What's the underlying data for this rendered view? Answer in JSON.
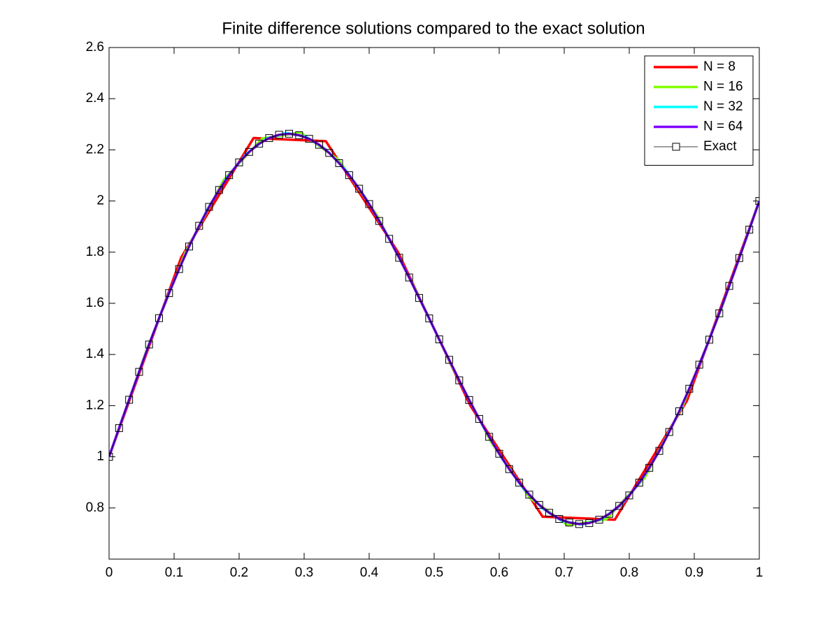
{
  "chart_data": {
    "type": "line",
    "title": "Finite difference solutions compared to the exact solution",
    "xlim": [
      0,
      1
    ],
    "xticks": [
      0,
      0.1,
      0.2,
      0.3,
      0.4,
      0.5,
      0.6,
      0.7,
      0.8,
      0.9,
      1
    ],
    "ylim": [
      0.6,
      2.6
    ],
    "yticks": [
      0.8,
      1,
      1.2,
      1.4,
      1.6,
      1.8,
      2,
      2.2,
      2.4,
      2.6
    ],
    "legend": "top-right",
    "series": [
      {
        "name": "N = 8",
        "color": "#ff0000",
        "linewidth": 3.5,
        "x": [
          0,
          0.1111,
          0.2222,
          0.3333,
          0.4444,
          0.5556,
          0.6667,
          0.7778,
          0.8889,
          1
        ],
        "values": [
          1,
          1.78,
          2.246,
          2.234,
          1.8,
          1.2,
          0.766,
          0.754,
          1.22,
          2
        ]
      },
      {
        "name": "N = 16",
        "color": "#80ff00",
        "linewidth": 3.5,
        "x": [
          0,
          0.0588,
          0.1176,
          0.1765,
          0.2353,
          0.2941,
          0.3529,
          0.4118,
          0.4706,
          0.5294,
          0.5882,
          0.6471,
          0.7059,
          0.7647,
          0.8235,
          0.8824,
          0.9412,
          1
        ],
        "values": [
          1,
          1.425,
          1.8,
          2.083,
          2.244,
          2.268,
          2.161,
          1.945,
          1.657,
          1.343,
          1.055,
          0.839,
          0.732,
          0.756,
          0.917,
          1.2,
          1.575,
          2
        ]
      },
      {
        "name": "N = 32",
        "color": "#00ffff",
        "linewidth": 3.5,
        "x": [
          0,
          0.0303,
          0.0606,
          0.0909,
          0.1212,
          0.1515,
          0.1818,
          0.2121,
          0.2424,
          0.2727,
          0.303,
          0.3333,
          0.3636,
          0.3939,
          0.4242,
          0.4545,
          0.4848,
          0.5152,
          0.5455,
          0.5758,
          0.6061,
          0.6364,
          0.6667,
          0.697,
          0.7273,
          0.7576,
          0.7879,
          0.8182,
          0.8485,
          0.8788,
          0.9091,
          0.9394,
          0.9697,
          1
        ],
        "values": [
          1,
          1.22,
          1.433,
          1.633,
          1.813,
          1.969,
          2.094,
          2.187,
          2.244,
          2.266,
          2.251,
          2.202,
          2.122,
          2.014,
          1.884,
          1.737,
          1.58,
          1.42,
          1.263,
          1.116,
          0.986,
          0.878,
          0.798,
          0.749,
          0.735,
          0.756,
          0.813,
          0.906,
          1.032,
          1.187,
          1.367,
          1.567,
          1.78,
          2
        ]
      },
      {
        "name": "N = 64",
        "color": "#8000ff",
        "linewidth": 3.5,
        "x": [
          0,
          0.0154,
          0.0308,
          0.0462,
          0.0615,
          0.0769,
          0.0923,
          0.1077,
          0.1231,
          0.1385,
          0.1538,
          0.1692,
          0.1846,
          0.2,
          0.2154,
          0.2308,
          0.2462,
          0.2615,
          0.2769,
          0.2923,
          0.3077,
          0.3231,
          0.3385,
          0.3538,
          0.3692,
          0.3846,
          0.4,
          0.4154,
          0.4308,
          0.4462,
          0.4615,
          0.4769,
          0.4923,
          0.5077,
          0.5231,
          0.5385,
          0.5538,
          0.5692,
          0.5846,
          0.6,
          0.6154,
          0.6308,
          0.6462,
          0.6615,
          0.6769,
          0.6923,
          0.7077,
          0.7231,
          0.7385,
          0.7538,
          0.7692,
          0.7846,
          0.8,
          0.8154,
          0.8308,
          0.8462,
          0.8615,
          0.8769,
          0.8923,
          0.9077,
          0.9231,
          0.9385,
          0.9538,
          0.9692,
          0.9846,
          1
        ],
        "values": [
          1,
          1.112,
          1.223,
          1.332,
          1.439,
          1.542,
          1.64,
          1.734,
          1.822,
          1.903,
          1.977,
          2.043,
          2.101,
          2.151,
          2.192,
          2.224,
          2.246,
          2.259,
          2.263,
          2.257,
          2.243,
          2.22,
          2.188,
          2.148,
          2.101,
          2.048,
          1.988,
          1.922,
          1.852,
          1.778,
          1.701,
          1.621,
          1.541,
          1.459,
          1.379,
          1.299,
          1.222,
          1.148,
          1.078,
          1.012,
          0.952,
          0.899,
          0.852,
          0.812,
          0.781,
          0.757,
          0.743,
          0.737,
          0.741,
          0.754,
          0.777,
          0.808,
          0.849,
          0.899,
          0.957,
          1.023,
          1.097,
          1.178,
          1.266,
          1.36,
          1.458,
          1.561,
          1.668,
          1.777,
          1.888,
          2
        ]
      },
      {
        "name": "Exact",
        "color": "#000000",
        "linewidth": 0.8,
        "marker": "square",
        "x": [
          0,
          0.0154,
          0.0308,
          0.0462,
          0.0615,
          0.0769,
          0.0923,
          0.1077,
          0.1231,
          0.1385,
          0.1538,
          0.1692,
          0.1846,
          0.2,
          0.2154,
          0.2308,
          0.2462,
          0.2615,
          0.2769,
          0.2923,
          0.3077,
          0.3231,
          0.3385,
          0.3538,
          0.3692,
          0.3846,
          0.4,
          0.4154,
          0.4308,
          0.4462,
          0.4615,
          0.4769,
          0.4923,
          0.5077,
          0.5231,
          0.5385,
          0.5538,
          0.5692,
          0.5846,
          0.6,
          0.6154,
          0.6308,
          0.6462,
          0.6615,
          0.6769,
          0.6923,
          0.7077,
          0.7231,
          0.7385,
          0.7538,
          0.7692,
          0.7846,
          0.8,
          0.8154,
          0.8308,
          0.8462,
          0.8615,
          0.8769,
          0.8923,
          0.9077,
          0.9231,
          0.9385,
          0.9538,
          0.9692,
          0.9846,
          1
        ],
        "values": [
          1,
          1.112,
          1.223,
          1.332,
          1.439,
          1.542,
          1.64,
          1.734,
          1.822,
          1.903,
          1.977,
          2.043,
          2.101,
          2.151,
          2.192,
          2.224,
          2.246,
          2.259,
          2.263,
          2.257,
          2.243,
          2.22,
          2.188,
          2.148,
          2.101,
          2.048,
          1.988,
          1.922,
          1.852,
          1.778,
          1.701,
          1.621,
          1.541,
          1.459,
          1.379,
          1.299,
          1.222,
          1.148,
          1.078,
          1.012,
          0.952,
          0.899,
          0.852,
          0.812,
          0.781,
          0.757,
          0.743,
          0.737,
          0.741,
          0.754,
          0.777,
          0.808,
          0.849,
          0.899,
          0.957,
          1.023,
          1.097,
          1.178,
          1.266,
          1.36,
          1.458,
          1.561,
          1.668,
          1.777,
          1.888,
          2
        ]
      }
    ]
  }
}
